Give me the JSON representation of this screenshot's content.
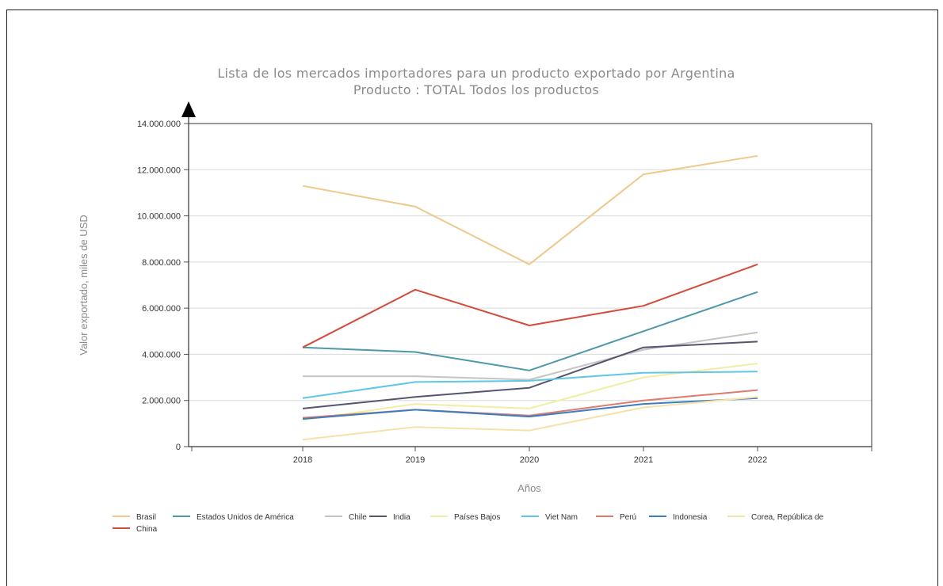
{
  "chart_data": {
    "type": "line",
    "title": [
      "Lista de los mercados importadores para un producto exportado por Argentina",
      "Producto : TOTAL Todos los productos"
    ],
    "xlabel": "Años",
    "ylabel": "Valor exportado, miles de USD",
    "x": [
      "2018",
      "2019",
      "2020",
      "2021",
      "2022"
    ],
    "ylim": [
      0,
      14000000
    ],
    "yticks": [
      {
        "value": 0,
        "label": "0"
      },
      {
        "value": 2000000,
        "label": "2.000.000"
      },
      {
        "value": 4000000,
        "label": "4.000.000"
      },
      {
        "value": 6000000,
        "label": "6.000.000"
      },
      {
        "value": 8000000,
        "label": "8.000.000"
      },
      {
        "value": 10000000,
        "label": "10.000.000"
      },
      {
        "value": 12000000,
        "label": "12.000.000"
      },
      {
        "value": 14000000,
        "label": "14.000.000"
      }
    ],
    "grid": true,
    "legend_position": "bottom",
    "series": [
      {
        "name": "Brasil",
        "color": "#f0c88a",
        "values": [
          11300000,
          10400000,
          7900000,
          11800000,
          12600000
        ]
      },
      {
        "name": "Estados Unidos de América",
        "color": "#4f98a8",
        "values": [
          4300000,
          4100000,
          3300000,
          5000000,
          6700000
        ]
      },
      {
        "name": "Chile",
        "color": "#c4c4c4",
        "values": [
          3050000,
          3050000,
          2900000,
          4200000,
          4950000
        ]
      },
      {
        "name": "India",
        "color": "#55556e",
        "values": [
          1650000,
          2150000,
          2550000,
          4300000,
          4550000
        ]
      },
      {
        "name": "Países Bajos",
        "color": "#f0eea0",
        "values": [
          1150000,
          1850000,
          1650000,
          3000000,
          3600000
        ]
      },
      {
        "name": "Viet Nam",
        "color": "#5ec6e8",
        "values": [
          2100000,
          2800000,
          2850000,
          3200000,
          3250000
        ]
      },
      {
        "name": "Perú",
        "color": "#e07a6a",
        "values": [
          1250000,
          1600000,
          1350000,
          2000000,
          2450000
        ]
      },
      {
        "name": "Indonesia",
        "color": "#3a7ec0",
        "values": [
          1200000,
          1600000,
          1300000,
          1850000,
          2100000
        ]
      },
      {
        "name": "Corea, República de",
        "color": "#f5e2a8",
        "values": [
          300000,
          850000,
          700000,
          1700000,
          2150000
        ]
      },
      {
        "name": "China",
        "color": "#d64a3a",
        "values": [
          4300000,
          6800000,
          5250000,
          6100000,
          7900000
        ]
      }
    ]
  }
}
